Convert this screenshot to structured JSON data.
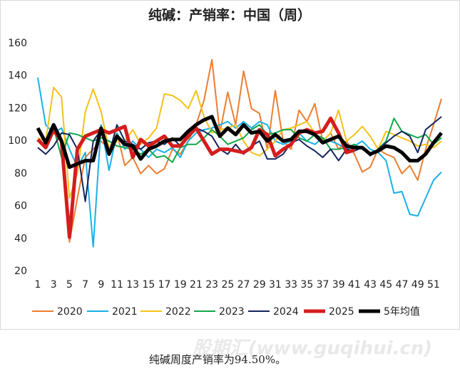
{
  "chart_data": {
    "type": "line",
    "title": "纯碱：产销率：中国（周）",
    "x": [
      1,
      2,
      3,
      4,
      5,
      6,
      7,
      8,
      9,
      10,
      11,
      12,
      13,
      14,
      15,
      16,
      17,
      18,
      19,
      20,
      21,
      22,
      23,
      24,
      25,
      26,
      27,
      28,
      29,
      30,
      31,
      32,
      33,
      34,
      35,
      36,
      37,
      38,
      39,
      40,
      41,
      42,
      43,
      44,
      45,
      46,
      47,
      48,
      49,
      50,
      51,
      52
    ],
    "xlim": [
      1,
      52
    ],
    "xticks": [
      1,
      3,
      5,
      7,
      9,
      11,
      13,
      15,
      17,
      19,
      21,
      23,
      25,
      27,
      29,
      31,
      33,
      35,
      37,
      39,
      41,
      43,
      45,
      47,
      49,
      51
    ],
    "ylim": [
      20,
      160
    ],
    "yticks": [
      20,
      40,
      60,
      80,
      100,
      120,
      140,
      160
    ],
    "series": [
      {
        "name": "2020",
        "color": "#ed7d31",
        "width": 2,
        "values": [
          100,
          97,
          105,
          100,
          38,
          65,
          90,
          95,
          100,
          95,
          105,
          85,
          90,
          80,
          85,
          80,
          83,
          95,
          92,
          100,
          110,
          125,
          150,
          105,
          130,
          110,
          143,
          120,
          117,
          95,
          131,
          100,
          95,
          119,
          112,
          123,
          100,
          105,
          95,
          100,
          92,
          81,
          84,
          95,
          92,
          90,
          80,
          85,
          76,
          95,
          110,
          126
        ]
      },
      {
        "name": "2021",
        "color": "#1cb0e8",
        "width": 2,
        "values": [
          139,
          110,
          105,
          108,
          95,
          84,
          93,
          35,
          110,
          82,
          105,
          95,
          100,
          95,
          90,
          95,
          93,
          96,
          90,
          100,
          105,
          107,
          108,
          110,
          112,
          108,
          112,
          108,
          112,
          110,
          100,
          98,
          100,
          105,
          100,
          98,
          102,
          100,
          98,
          95,
          97,
          100,
          95,
          93,
          88,
          68,
          69,
          55,
          54,
          65,
          76,
          81
        ]
      },
      {
        "name": "2022",
        "color": "#f5c218",
        "width": 2,
        "values": [
          102,
          100,
          133,
          127,
          65,
          80,
          118,
          132,
          118,
          95,
          100,
          100,
          107,
          98,
          102,
          108,
          129,
          128,
          125,
          120,
          131,
          115,
          105,
          107,
          108,
          110,
          100,
          93,
          91,
          95,
          100,
          107,
          108,
          110,
          112,
          105,
          100,
          105,
          119,
          100,
          104,
          109,
          103,
          95,
          106,
          104,
          102,
          100,
          97,
          98,
          96,
          100
        ]
      },
      {
        "name": "2023",
        "color": "#12a84a",
        "width": 2,
        "values": [
          100,
          98,
          108,
          90,
          105,
          104,
          102,
          100,
          102,
          100,
          97,
          96,
          95,
          92,
          95,
          90,
          91,
          87,
          96,
          98,
          98,
          102,
          107,
          103,
          98,
          100,
          102,
          107,
          110,
          104,
          105,
          107,
          107,
          102,
          100,
          104,
          102,
          95,
          95,
          96,
          98,
          95,
          92,
          95,
          100,
          114,
          106,
          104,
          102,
          104,
          98,
          102
        ]
      },
      {
        "name": "2024",
        "color": "#14255e",
        "width": 2,
        "values": [
          96,
          92,
          97,
          105,
          104,
          95,
          63,
          100,
          107,
          92,
          110,
          100,
          98,
          95,
          99,
          100,
          98,
          102,
          97,
          105,
          108,
          106,
          103,
          95,
          92,
          98,
          92,
          97,
          100,
          89,
          89,
          92,
          99,
          101,
          97,
          94,
          90,
          95,
          88,
          95,
          94,
          96,
          91,
          95,
          99,
          103,
          106,
          103,
          93,
          107,
          111,
          115
        ]
      },
      {
        "name": "2025",
        "color": "#d41d1d",
        "width": 5,
        "values": [
          101,
          96,
          107,
          100,
          41,
          95,
          103,
          105,
          107,
          105,
          107,
          109,
          90,
          101,
          97,
          100,
          103,
          97,
          97,
          103,
          108,
          100,
          92,
          95,
          95,
          94,
          93,
          96,
          107,
          104,
          91,
          95,
          98,
          105,
          107,
          105,
          106,
          114,
          105,
          93,
          94.5,
          null,
          null,
          null,
          null,
          null,
          null,
          null,
          null,
          null,
          null,
          null
        ]
      },
      {
        "name": "5年均值",
        "color": "#000000",
        "width": 5,
        "values": [
          108,
          99,
          110,
          100,
          84,
          86,
          88,
          88,
          108,
          92,
          103,
          98,
          97,
          89,
          95,
          97,
          100,
          101,
          101,
          106,
          110,
          113,
          115,
          103,
          108,
          104,
          110,
          105,
          106,
          100,
          104,
          100,
          101,
          106,
          106,
          104,
          99,
          101,
          103,
          97,
          96,
          96,
          92,
          94,
          97,
          96,
          93,
          88,
          88,
          92,
          99,
          105
        ]
      }
    ]
  },
  "watermark": "股期汇(www.guqihui.cn)",
  "caption": "纯碱周度产销率为94.50%。"
}
